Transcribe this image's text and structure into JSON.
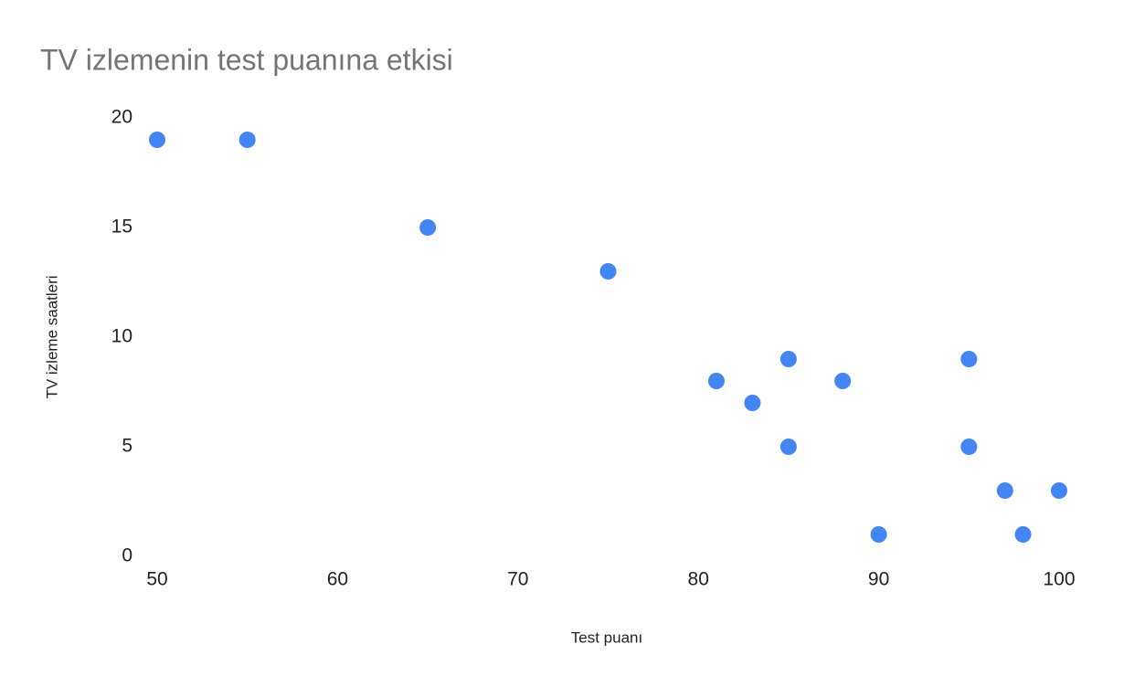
{
  "chart_data": {
    "type": "scatter",
    "title": "TV izlemenin test puanına etkisi",
    "x_label": "Test puanı",
    "y_label": "TV izleme saatleri",
    "x": [
      50,
      55,
      65,
      75,
      81,
      83,
      85,
      85,
      88,
      90,
      95,
      95,
      97,
      98,
      100
    ],
    "values": [
      19,
      19,
      15,
      13,
      8,
      7,
      9,
      5,
      8,
      1,
      9,
      5,
      3,
      1,
      3
    ],
    "color": "#4285f4",
    "xlim": [
      50,
      100
    ],
    "xticks": [
      50,
      60,
      70,
      80,
      90,
      100
    ],
    "ylim": [
      0,
      20
    ],
    "yticks": [
      0,
      5,
      10,
      15,
      20
    ],
    "grid": false
  }
}
